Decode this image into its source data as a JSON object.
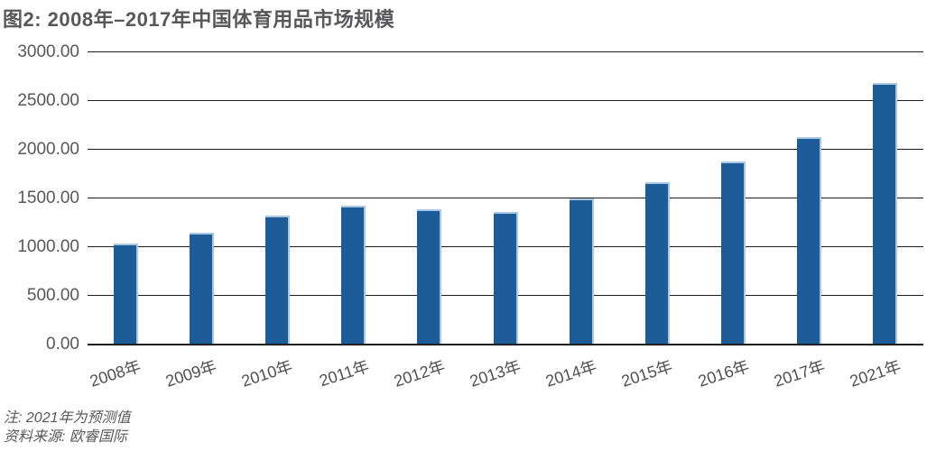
{
  "title": "图2: 2008年–2017年中国体育用品市场规模",
  "notes": {
    "note1": "注: 2021年为预测值",
    "note2": "资料来源: 欧睿国际"
  },
  "chart_data": {
    "type": "bar",
    "title": "图2: 2008年–2017年中国体育用品市场规模",
    "categories": [
      "2008年",
      "2009年",
      "2010年",
      "2011年",
      "2012年",
      "2013年",
      "2014年",
      "2015年",
      "2016年",
      "2017年",
      "2021年"
    ],
    "values": [
      1030,
      1140,
      1315,
      1415,
      1380,
      1350,
      1490,
      1660,
      1875,
      2120,
      2675
    ],
    "xlabel": "",
    "ylabel": "",
    "ylim": [
      0,
      3000
    ],
    "yticks": [
      3000,
      2500,
      2000,
      1500,
      1000,
      500,
      0
    ],
    "ytick_labels": [
      "3000.00",
      "2500.00",
      "2000.00",
      "1500.00",
      "1000.00",
      "500.00",
      "0.00"
    ],
    "grid": true,
    "legend": "none",
    "bar_color": "#1e5c99",
    "bar_edge_color": "#a9c8e4",
    "gridline_color": "#1f1f1f",
    "text_color": "#58585a",
    "background_color": "#ffffff",
    "note": "注: 2021年为预测值",
    "source": "资料来源: 欧睿国际"
  }
}
